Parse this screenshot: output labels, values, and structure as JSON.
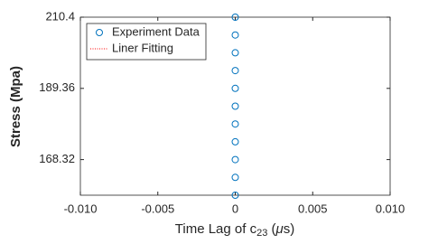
{
  "chart_data": {
    "type": "scatter",
    "xlabel": {
      "text": "Time Lag of c",
      "subscript": "23",
      "unit_open": " (",
      "unit_mu": "μ",
      "unit_close": "s)"
    },
    "ylabel": "Stress (Mpa)",
    "series": [
      {
        "name": "Experiment Data",
        "color": "#0072bd",
        "marker": "circle",
        "x": [
          0,
          0,
          0,
          0,
          0,
          0,
          0,
          0,
          0,
          0,
          0
        ],
        "values": [
          157.8,
          163.06,
          168.32,
          173.58,
          178.84,
          184.1,
          189.36,
          194.62,
          199.88,
          205.14,
          210.4
        ]
      },
      {
        "name": "Liner Fitting",
        "color": "#ff0000",
        "marker": "dotted-line",
        "x": [],
        "values": []
      }
    ],
    "xlim": [
      -0.01,
      0.01
    ],
    "xticks": [
      {
        "value": -0.01,
        "label": "-0.010"
      },
      {
        "value": -0.005,
        "label": "-0.005"
      },
      0,
      {
        "value": 0.005,
        "label": "0.005"
      },
      {
        "value": 0.01,
        "label": "0.010"
      }
    ],
    "ylim": [
      157.8,
      210.4
    ],
    "yticks": [
      168.32,
      189.36,
      210.4
    ],
    "grid": false,
    "legend": "top-left"
  }
}
